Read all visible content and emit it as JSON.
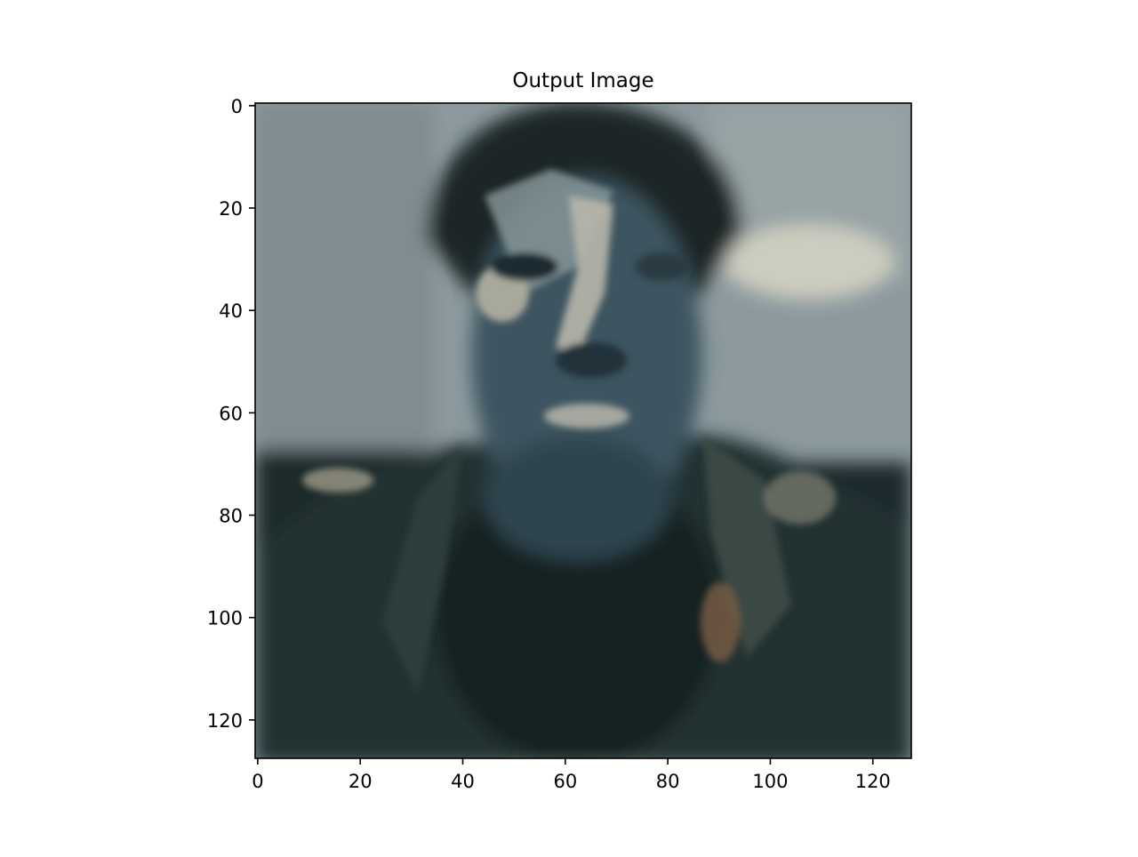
{
  "chart_data": {
    "type": "heatmap",
    "title": "Output Image",
    "xlabel": "",
    "ylabel": "",
    "image_size": [
      128,
      128
    ],
    "xlim": [
      -0.5,
      127.5
    ],
    "ylim": [
      127.5,
      -0.5
    ],
    "y_axis_inverted": true,
    "x_ticks": [
      0,
      20,
      40,
      60,
      80,
      100,
      120
    ],
    "y_ticks": [
      0,
      20,
      40,
      60,
      80,
      100,
      120
    ],
    "grid": false,
    "palette": {
      "background_wall": "#8c9a9f",
      "light_patch": "#c9cbc0",
      "hair": "#1b2628",
      "face": "#3c5460",
      "face_highlight": "#aeb0a8",
      "shirt": "#142022",
      "jacket": "#273535",
      "accent": "#8a6a4a"
    }
  }
}
